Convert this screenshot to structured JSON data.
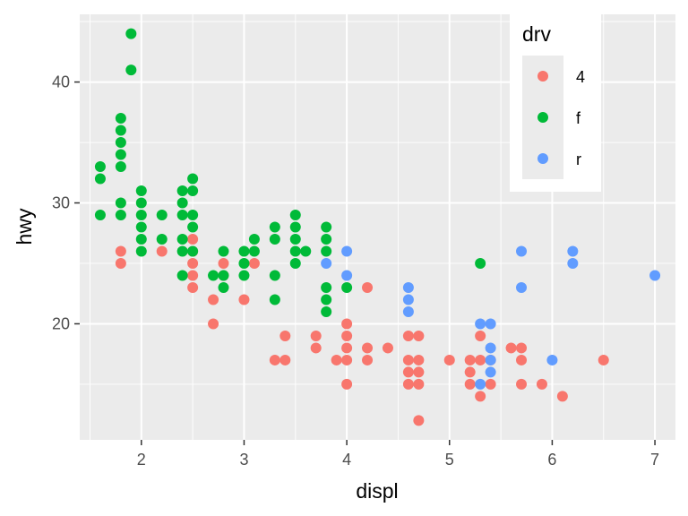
{
  "chart_data": {
    "type": "scatter",
    "xlabel": "displ",
    "ylabel": "hwy",
    "xlim": [
      1.4,
      7.2
    ],
    "ylim": [
      10.4,
      45.6
    ],
    "x_ticks": [
      2,
      3,
      4,
      5,
      6,
      7
    ],
    "y_ticks": [
      20,
      30,
      40
    ],
    "grid": true,
    "legend": {
      "title": "drv",
      "position": "top-right",
      "entries": [
        {
          "label": "4",
          "color": "#F8766D"
        },
        {
          "label": "f",
          "color": "#00BA38"
        },
        {
          "label": "r",
          "color": "#619CFF"
        }
      ]
    },
    "series": [
      {
        "name": "4",
        "color": "#F8766D",
        "points": [
          [
            1.8,
            26
          ],
          [
            1.8,
            25
          ],
          [
            2.2,
            26
          ],
          [
            2.5,
            27
          ],
          [
            2.5,
            26
          ],
          [
            2.5,
            25
          ],
          [
            2.5,
            24
          ],
          [
            2.5,
            23
          ],
          [
            2.7,
            22
          ],
          [
            2.7,
            20
          ],
          [
            2.8,
            25
          ],
          [
            2.8,
            24
          ],
          [
            3.0,
            22
          ],
          [
            3.1,
            25
          ],
          [
            3.3,
            17
          ],
          [
            3.4,
            19
          ],
          [
            3.4,
            17
          ],
          [
            3.7,
            19
          ],
          [
            3.7,
            18
          ],
          [
            3.9,
            17
          ],
          [
            4.0,
            20
          ],
          [
            4.0,
            19
          ],
          [
            4.0,
            18
          ],
          [
            4.0,
            17
          ],
          [
            4.0,
            15
          ],
          [
            4.2,
            23
          ],
          [
            4.2,
            18
          ],
          [
            4.2,
            17
          ],
          [
            4.4,
            18
          ],
          [
            4.6,
            19
          ],
          [
            4.6,
            17
          ],
          [
            4.6,
            16
          ],
          [
            4.6,
            15
          ],
          [
            4.7,
            19
          ],
          [
            4.7,
            17
          ],
          [
            4.7,
            16
          ],
          [
            4.7,
            15
          ],
          [
            4.7,
            12
          ],
          [
            5.0,
            17
          ],
          [
            5.2,
            17
          ],
          [
            5.2,
            16
          ],
          [
            5.2,
            15
          ],
          [
            5.3,
            19
          ],
          [
            5.3,
            17
          ],
          [
            5.3,
            14
          ],
          [
            5.4,
            17
          ],
          [
            5.4,
            15
          ],
          [
            5.6,
            18
          ],
          [
            5.7,
            18
          ],
          [
            5.7,
            17
          ],
          [
            5.7,
            15
          ],
          [
            5.9,
            15
          ],
          [
            6.1,
            14
          ],
          [
            6.5,
            17
          ]
        ]
      },
      {
        "name": "f",
        "color": "#00BA38",
        "points": [
          [
            1.6,
            33
          ],
          [
            1.6,
            32
          ],
          [
            1.6,
            29
          ],
          [
            1.8,
            37
          ],
          [
            1.8,
            36
          ],
          [
            1.8,
            35
          ],
          [
            1.8,
            34
          ],
          [
            1.8,
            33
          ],
          [
            1.8,
            30
          ],
          [
            1.8,
            29
          ],
          [
            1.9,
            44
          ],
          [
            1.9,
            41
          ],
          [
            2.0,
            31
          ],
          [
            2.0,
            30
          ],
          [
            2.0,
            29
          ],
          [
            2.0,
            28
          ],
          [
            2.0,
            27
          ],
          [
            2.0,
            26
          ],
          [
            2.2,
            29
          ],
          [
            2.2,
            27
          ],
          [
            2.4,
            31
          ],
          [
            2.4,
            30
          ],
          [
            2.4,
            29
          ],
          [
            2.4,
            27
          ],
          [
            2.4,
            26
          ],
          [
            2.4,
            24
          ],
          [
            2.5,
            32
          ],
          [
            2.5,
            31
          ],
          [
            2.5,
            29
          ],
          [
            2.5,
            28
          ],
          [
            2.5,
            26
          ],
          [
            2.7,
            24
          ],
          [
            2.8,
            26
          ],
          [
            2.8,
            24
          ],
          [
            2.8,
            23
          ],
          [
            3.0,
            26
          ],
          [
            3.0,
            25
          ],
          [
            3.0,
            24
          ],
          [
            3.1,
            27
          ],
          [
            3.1,
            26
          ],
          [
            3.3,
            28
          ],
          [
            3.3,
            27
          ],
          [
            3.3,
            24
          ],
          [
            3.3,
            22
          ],
          [
            3.5,
            29
          ],
          [
            3.5,
            28
          ],
          [
            3.5,
            27
          ],
          [
            3.5,
            26
          ],
          [
            3.5,
            25
          ],
          [
            3.6,
            26
          ],
          [
            3.8,
            28
          ],
          [
            3.8,
            27
          ],
          [
            3.8,
            26
          ],
          [
            3.8,
            23
          ],
          [
            3.8,
            22
          ],
          [
            3.8,
            21
          ],
          [
            4.0,
            23
          ],
          [
            5.3,
            25
          ]
        ]
      },
      {
        "name": "r",
        "color": "#619CFF",
        "points": [
          [
            3.8,
            25
          ],
          [
            4.0,
            26
          ],
          [
            4.0,
            24
          ],
          [
            4.6,
            23
          ],
          [
            4.6,
            22
          ],
          [
            4.6,
            21
          ],
          [
            5.3,
            20
          ],
          [
            5.3,
            15
          ],
          [
            5.4,
            20
          ],
          [
            5.4,
            18
          ],
          [
            5.4,
            17
          ],
          [
            5.4,
            16
          ],
          [
            5.7,
            26
          ],
          [
            5.7,
            23
          ],
          [
            6.0,
            17
          ],
          [
            6.2,
            26
          ],
          [
            6.2,
            25
          ],
          [
            7.0,
            24
          ]
        ]
      }
    ]
  }
}
